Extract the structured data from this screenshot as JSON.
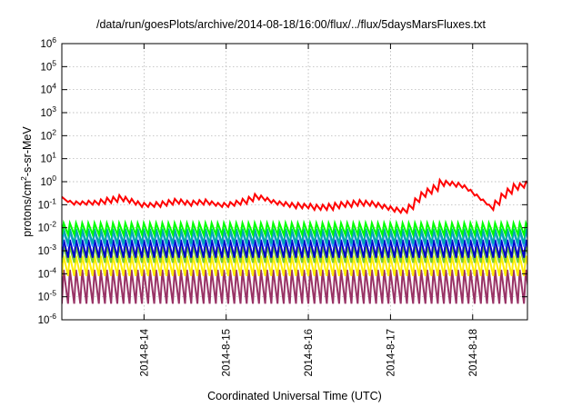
{
  "chart_data": {
    "type": "line",
    "title": "/data/run/goesPlots/archive/2014-08-18/16:00/flux/../flux/5daysMarsFluxes.txt",
    "xlabel": "Coordinated Universal Time (UTC)",
    "ylabel": "protons/cm²-s-sr-MeV",
    "y_scale": "log",
    "ylim": [
      1e-06,
      1000000
    ],
    "y_ticks": [
      {
        "value": 1e-06,
        "base": "10",
        "exp": "-6"
      },
      {
        "value": 1e-05,
        "base": "10",
        "exp": "-5"
      },
      {
        "value": 0.0001,
        "base": "10",
        "exp": "-4"
      },
      {
        "value": 0.001,
        "base": "10",
        "exp": "-3"
      },
      {
        "value": 0.01,
        "base": "10",
        "exp": "-2"
      },
      {
        "value": 0.1,
        "base": "10",
        "exp": "-1"
      },
      {
        "value": 1,
        "base": "10",
        "exp": "0"
      },
      {
        "value": 10,
        "base": "10",
        "exp": "1"
      },
      {
        "value": 100,
        "base": "10",
        "exp": "2"
      },
      {
        "value": 1000,
        "base": "10",
        "exp": "3"
      },
      {
        "value": 10000,
        "base": "10",
        "exp": "4"
      },
      {
        "value": 100000,
        "base": "10",
        "exp": "5"
      },
      {
        "value": 1000000,
        "base": "10",
        "exp": "6"
      }
    ],
    "xlim": [
      "2014-08-13 00:00",
      "2014-08-18 16:00"
    ],
    "x_ticks": [
      "2014-8-14",
      "2014-8-15",
      "2014-8-16",
      "2014-8-17",
      "2014-8-18"
    ],
    "grid": true,
    "legend": "none",
    "series": [
      {
        "color": "#ff0000",
        "stroke_width": 2,
        "points": [
          [
            "2014-08-13 00:00",
            0.22
          ],
          [
            "2014-08-13 01:48",
            0.13
          ],
          [
            "2014-08-13 02:24",
            0.15
          ],
          [
            "2014-08-13 03:36",
            0.1
          ],
          [
            "2014-08-13 04:12",
            0.14
          ],
          [
            "2014-08-13 05:24",
            0.1
          ],
          [
            "2014-08-13 06:00",
            0.14
          ],
          [
            "2014-08-13 07:12",
            0.1
          ],
          [
            "2014-08-13 07:48",
            0.15
          ],
          [
            "2014-08-13 09:00",
            0.1
          ],
          [
            "2014-08-13 09:36",
            0.15
          ],
          [
            "2014-08-13 10:48",
            0.1
          ],
          [
            "2014-08-13 11:24",
            0.17
          ],
          [
            "2014-08-13 12:36",
            0.11
          ],
          [
            "2014-08-13 13:12",
            0.2
          ],
          [
            "2014-08-13 14:24",
            0.12
          ],
          [
            "2014-08-13 15:00",
            0.22
          ],
          [
            "2014-08-13 16:12",
            0.13
          ],
          [
            "2014-08-13 16:48",
            0.26
          ],
          [
            "2014-08-13 18:00",
            0.14
          ],
          [
            "2014-08-13 18:36",
            0.22
          ],
          [
            "2014-08-13 19:48",
            0.12
          ],
          [
            "2014-08-13 20:24",
            0.18
          ],
          [
            "2014-08-13 21:36",
            0.1
          ],
          [
            "2014-08-13 22:12",
            0.14
          ],
          [
            "2014-08-13 23:24",
            0.08
          ],
          [
            "2014-08-14 00:00",
            0.12
          ],
          [
            "2014-08-14 01:12",
            0.08
          ],
          [
            "2014-08-14 01:48",
            0.12
          ],
          [
            "2014-08-14 03:00",
            0.08
          ],
          [
            "2014-08-14 03:36",
            0.13
          ],
          [
            "2014-08-14 04:48",
            0.08
          ],
          [
            "2014-08-14 05:24",
            0.14
          ],
          [
            "2014-08-14 06:36",
            0.09
          ],
          [
            "2014-08-14 07:12",
            0.16
          ],
          [
            "2014-08-14 08:24",
            0.1
          ],
          [
            "2014-08-14 09:00",
            0.18
          ],
          [
            "2014-08-14 10:12",
            0.11
          ],
          [
            "2014-08-14 10:48",
            0.17
          ],
          [
            "2014-08-14 12:00",
            0.1
          ],
          [
            "2014-08-14 12:36",
            0.15
          ],
          [
            "2014-08-14 13:48",
            0.09
          ],
          [
            "2014-08-14 14:24",
            0.15
          ],
          [
            "2014-08-14 15:36",
            0.1
          ],
          [
            "2014-08-14 16:12",
            0.16
          ],
          [
            "2014-08-14 17:24",
            0.1
          ],
          [
            "2014-08-14 18:00",
            0.17
          ],
          [
            "2014-08-14 19:12",
            0.1
          ],
          [
            "2014-08-14 19:48",
            0.14
          ],
          [
            "2014-08-14 21:00",
            0.09
          ],
          [
            "2014-08-14 21:36",
            0.12
          ],
          [
            "2014-08-14 22:48",
            0.08
          ],
          [
            "2014-08-14 23:24",
            0.12
          ],
          [
            "2014-08-15 00:36",
            0.08
          ],
          [
            "2014-08-15 01:12",
            0.13
          ],
          [
            "2014-08-15 02:24",
            0.09
          ],
          [
            "2014-08-15 03:00",
            0.15
          ],
          [
            "2014-08-15 04:12",
            0.1
          ],
          [
            "2014-08-15 04:48",
            0.18
          ],
          [
            "2014-08-15 06:00",
            0.11
          ],
          [
            "2014-08-15 06:36",
            0.22
          ],
          [
            "2014-08-15 07:48",
            0.14
          ],
          [
            "2014-08-15 08:24",
            0.29
          ],
          [
            "2014-08-15 09:36",
            0.17
          ],
          [
            "2014-08-15 10:12",
            0.25
          ],
          [
            "2014-08-15 11:24",
            0.15
          ],
          [
            "2014-08-15 12:00",
            0.2
          ],
          [
            "2014-08-15 13:12",
            0.12
          ],
          [
            "2014-08-15 13:48",
            0.16
          ],
          [
            "2014-08-15 15:00",
            0.1
          ],
          [
            "2014-08-15 15:36",
            0.14
          ],
          [
            "2014-08-15 16:48",
            0.09
          ],
          [
            "2014-08-15 17:24",
            0.13
          ],
          [
            "2014-08-15 18:36",
            0.08
          ],
          [
            "2014-08-15 19:12",
            0.12
          ],
          [
            "2014-08-15 20:24",
            0.07
          ],
          [
            "2014-08-15 21:00",
            0.12
          ],
          [
            "2014-08-15 22:12",
            0.07
          ],
          [
            "2014-08-15 22:48",
            0.11
          ],
          [
            "2014-08-16 00:00",
            0.07
          ],
          [
            "2014-08-16 00:36",
            0.11
          ],
          [
            "2014-08-16 01:48",
            0.06
          ],
          [
            "2014-08-16 02:24",
            0.1
          ],
          [
            "2014-08-16 03:36",
            0.06
          ],
          [
            "2014-08-16 04:12",
            0.1
          ],
          [
            "2014-08-16 05:24",
            0.06
          ],
          [
            "2014-08-16 06:00",
            0.11
          ],
          [
            "2014-08-16 07:12",
            0.06
          ],
          [
            "2014-08-16 07:48",
            0.12
          ],
          [
            "2014-08-16 09:00",
            0.07
          ],
          [
            "2014-08-16 09:36",
            0.13
          ],
          [
            "2014-08-16 10:48",
            0.08
          ],
          [
            "2014-08-16 11:24",
            0.14
          ],
          [
            "2014-08-16 12:36",
            0.08
          ],
          [
            "2014-08-16 13:12",
            0.15
          ],
          [
            "2014-08-16 14:24",
            0.09
          ],
          [
            "2014-08-16 15:00",
            0.16
          ],
          [
            "2014-08-16 16:12",
            0.09
          ],
          [
            "2014-08-16 16:48",
            0.15
          ],
          [
            "2014-08-16 18:00",
            0.09
          ],
          [
            "2014-08-16 18:36",
            0.14
          ],
          [
            "2014-08-16 19:48",
            0.08
          ],
          [
            "2014-08-16 20:24",
            0.12
          ],
          [
            "2014-08-16 21:36",
            0.07
          ],
          [
            "2014-08-16 22:12",
            0.1
          ],
          [
            "2014-08-16 23:24",
            0.06
          ],
          [
            "2014-08-17 00:00",
            0.085
          ],
          [
            "2014-08-17 01:12",
            0.05
          ],
          [
            "2014-08-17 01:48",
            0.075
          ],
          [
            "2014-08-17 03:00",
            0.045
          ],
          [
            "2014-08-17 03:36",
            0.07
          ],
          [
            "2014-08-17 04:48",
            0.045
          ],
          [
            "2014-08-17 05:24",
            0.1
          ],
          [
            "2014-08-17 06:36",
            0.065
          ],
          [
            "2014-08-17 07:12",
            0.19
          ],
          [
            "2014-08-17 08:24",
            0.13
          ],
          [
            "2014-08-17 09:00",
            0.35
          ],
          [
            "2014-08-17 10:12",
            0.22
          ],
          [
            "2014-08-17 10:48",
            0.5
          ],
          [
            "2014-08-17 12:00",
            0.3
          ],
          [
            "2014-08-17 12:36",
            0.7
          ],
          [
            "2014-08-17 13:48",
            0.4
          ],
          [
            "2014-08-17 14:24",
            1.2
          ],
          [
            "2014-08-17 15:36",
            0.65
          ],
          [
            "2014-08-17 16:12",
            1.1
          ],
          [
            "2014-08-17 17:24",
            0.7
          ],
          [
            "2014-08-17 18:00",
            1.0
          ],
          [
            "2014-08-17 19:12",
            0.6
          ],
          [
            "2014-08-17 19:48",
            0.9
          ],
          [
            "2014-08-17 21:00",
            0.55
          ],
          [
            "2014-08-17 21:36",
            0.7
          ],
          [
            "2014-08-17 22:48",
            0.4
          ],
          [
            "2014-08-17 23:24",
            0.45
          ],
          [
            "2014-08-18 00:36",
            0.25
          ],
          [
            "2014-08-18 01:12",
            0.28
          ],
          [
            "2014-08-18 02:24",
            0.16
          ],
          [
            "2014-08-18 03:00",
            0.17
          ],
          [
            "2014-08-18 04:12",
            0.1
          ],
          [
            "2014-08-18 04:48",
            0.1
          ],
          [
            "2014-08-18 06:00",
            0.06
          ],
          [
            "2014-08-18 06:36",
            0.15
          ],
          [
            "2014-08-18 07:48",
            0.1
          ],
          [
            "2014-08-18 08:24",
            0.3
          ],
          [
            "2014-08-18 09:36",
            0.2
          ],
          [
            "2014-08-18 10:12",
            0.5
          ],
          [
            "2014-08-18 11:24",
            0.3
          ],
          [
            "2014-08-18 12:00",
            0.8
          ],
          [
            "2014-08-18 13:12",
            0.45
          ],
          [
            "2014-08-18 13:48",
            0.85
          ],
          [
            "2014-08-18 15:00",
            0.55
          ],
          [
            "2014-08-18 15:36",
            1.0
          ],
          [
            "2014-08-18 16:00",
            0.9
          ]
        ]
      },
      {
        "color": "#00ff00",
        "stroke_width": 2,
        "sawtooth_period_hours": 1.8,
        "peak": 0.016,
        "trough": 0.005
      },
      {
        "color": "#00aaaa",
        "stroke_width": 2,
        "sawtooth_period_hours": 1.8,
        "peak": 0.009,
        "trough": 0.002
      },
      {
        "color": "#3399ff",
        "stroke_width": 2,
        "sawtooth_period_hours": 1.8,
        "peak": 0.007,
        "trough": 0.0015
      },
      {
        "color": "#0000cc",
        "stroke_width": 2,
        "sawtooth_period_hours": 1.8,
        "peak": 0.003,
        "trough": 0.0005
      },
      {
        "color": "#77cc33",
        "stroke_width": 2,
        "sawtooth_period_hours": 1.8,
        "peak": 0.0015,
        "trough": 0.0003
      },
      {
        "color": "#ffee00",
        "stroke_width": 2,
        "sawtooth_period_hours": 1.8,
        "peak": 0.0006,
        "trough": 8e-05
      },
      {
        "color": "#993366",
        "stroke_width": 2,
        "sawtooth_period_hours": 1.8,
        "peak": 0.00015,
        "trough": 5e-06
      }
    ]
  }
}
